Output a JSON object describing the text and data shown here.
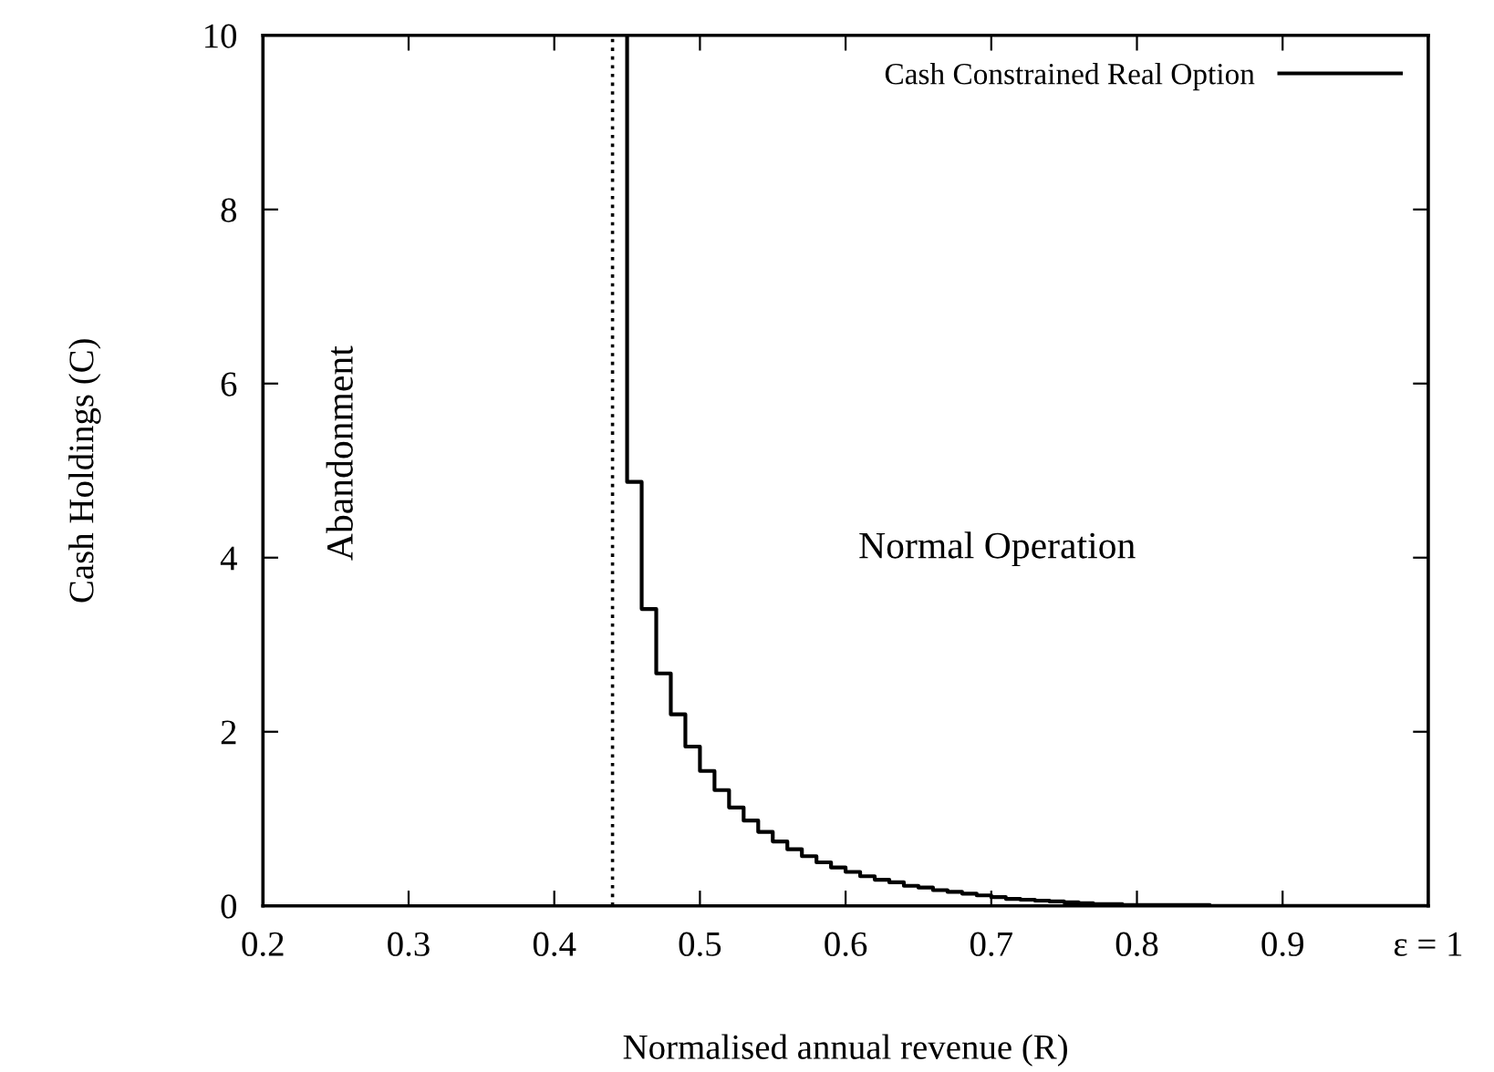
{
  "chart_data": {
    "type": "step",
    "xlabel": "Normalised annual revenue (R)",
    "ylabel": "Cash Holdings (C)",
    "annotations": [
      "Abandonment",
      "Normal Operation"
    ],
    "series": [
      {
        "name": "Cash Constrained Real Option",
        "color": "#000000",
        "line_style": "solid",
        "x": [
          0.45,
          0.45,
          0.46,
          0.47,
          0.48,
          0.49,
          0.5,
          0.51,
          0.52,
          0.53,
          0.54,
          0.55,
          0.56,
          0.57,
          0.58,
          0.59,
          0.6,
          0.61,
          0.62,
          0.63,
          0.64,
          0.65,
          0.66,
          0.67,
          0.68,
          0.69,
          0.7,
          0.71,
          0.72,
          0.73,
          0.74,
          0.75,
          0.76,
          0.77,
          0.78,
          0.79,
          0.8,
          0.85,
          0.9,
          0.95,
          1.0
        ],
        "values": [
          10,
          4.87,
          3.41,
          2.67,
          2.2,
          1.83,
          1.55,
          1.33,
          1.13,
          0.98,
          0.85,
          0.74,
          0.65,
          0.57,
          0.5,
          0.44,
          0.39,
          0.34,
          0.3,
          0.27,
          0.23,
          0.21,
          0.18,
          0.16,
          0.14,
          0.12,
          0.1,
          0.08,
          0.07,
          0.06,
          0.05,
          0.04,
          0.03,
          0.02,
          0.02,
          0.01,
          0.01,
          0,
          0,
          0,
          0
        ]
      }
    ],
    "ref_lines": [
      {
        "axis": "x",
        "value": 0.44,
        "color": "#000000",
        "line_style": "dotted"
      }
    ],
    "xlim": [
      0.2,
      1
    ],
    "xticks": [
      0.2,
      0.3,
      0.4,
      0.5,
      0.6,
      0.7,
      0.8,
      0.9,
      {
        "value": 1,
        "label": "ε = 1"
      }
    ],
    "ylim": [
      0,
      10
    ],
    "yticks": [
      0,
      2,
      4,
      6,
      8,
      10
    ],
    "legend": "top right",
    "grid": false
  }
}
